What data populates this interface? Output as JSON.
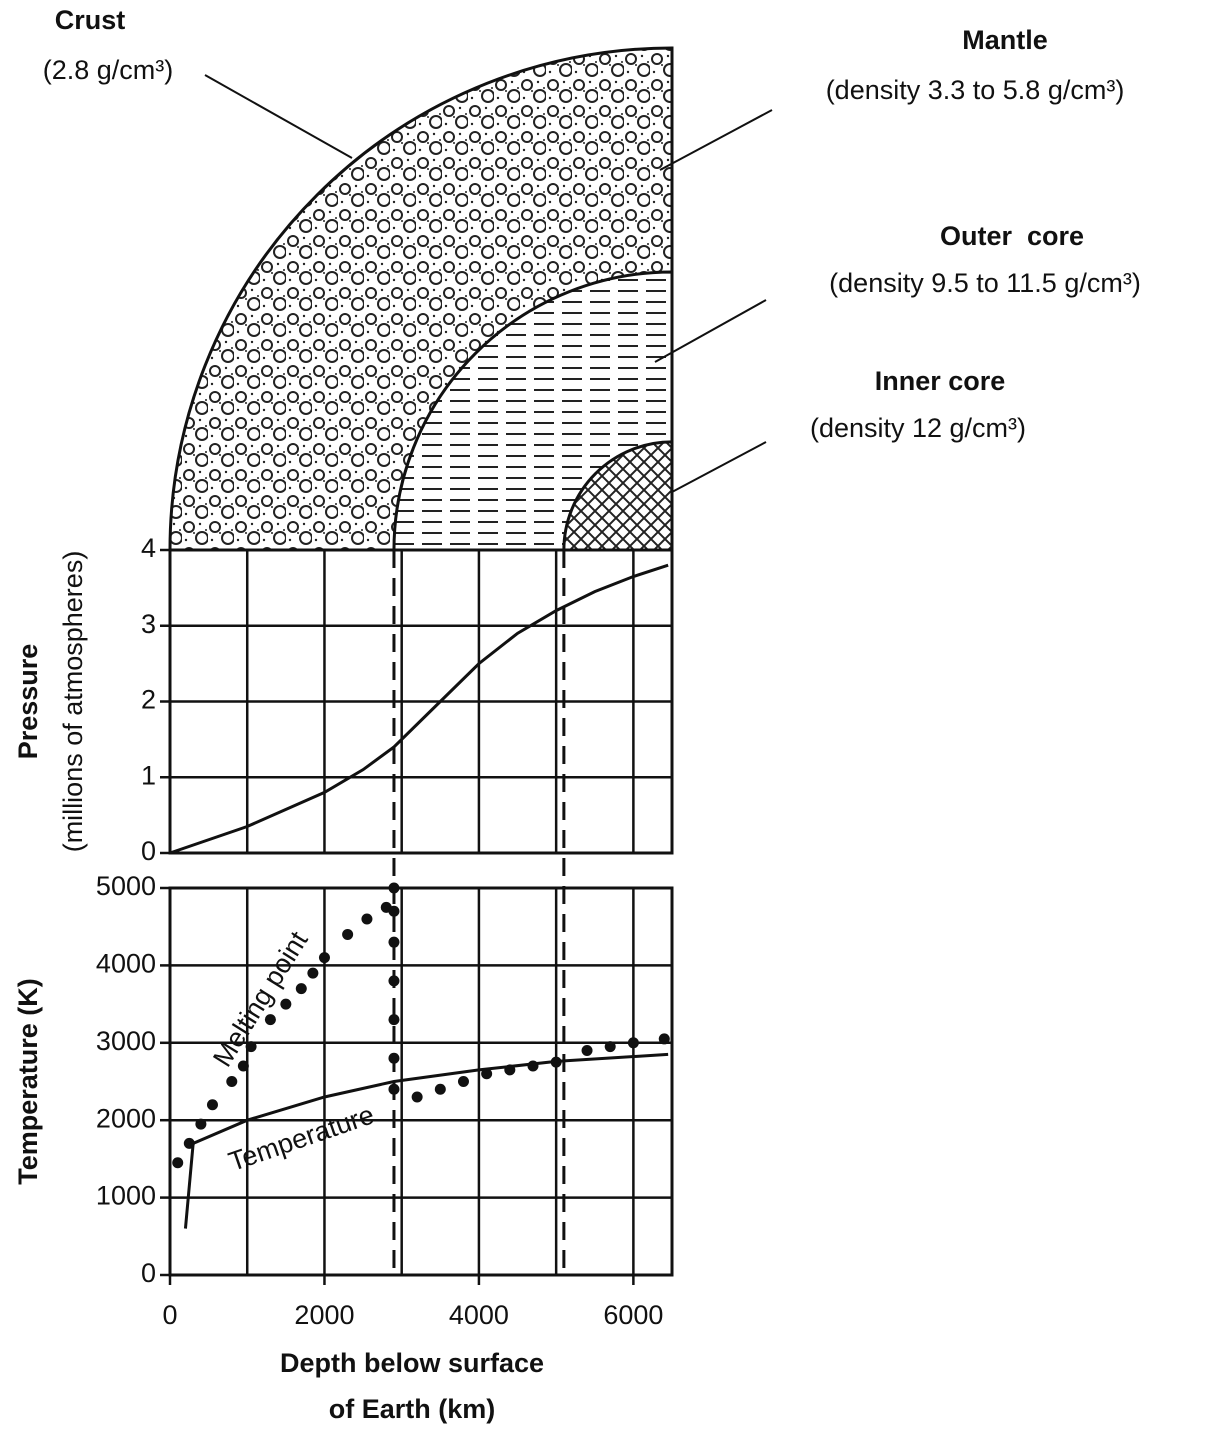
{
  "diagram": {
    "layers": [
      {
        "name": "Crust",
        "density": "(2.8 g/cm³)"
      },
      {
        "name": "Mantle",
        "density": "(density 3.3 to 5.8 g/cm³)"
      },
      {
        "name": "Outer  core",
        "density": "(density 9.5 to 11.5 g/cm³)"
      },
      {
        "name": "Inner core",
        "density": "(density 12 g/cm³)"
      }
    ],
    "boundaries": [
      2900,
      5100
    ]
  },
  "chart_data": [
    {
      "type": "line",
      "ylabel": [
        "Pressure",
        "(millions of atmospheres)"
      ],
      "xlim": [
        0,
        6500
      ],
      "ylim": [
        0,
        4
      ],
      "yticks": [
        0,
        1,
        2,
        3,
        4
      ],
      "xgrid_step": 1000,
      "grid": true,
      "series": [
        {
          "color": "#111",
          "style": "solid",
          "x": [
            0,
            1000,
            2000,
            2500,
            2900,
            3500,
            4000,
            4500,
            5000,
            5500,
            6000,
            6450
          ],
          "values": [
            0,
            0.35,
            0.8,
            1.1,
            1.4,
            2.0,
            2.5,
            2.9,
            3.2,
            3.45,
            3.65,
            3.8
          ]
        }
      ]
    },
    {
      "type": "line",
      "ylabel": "Temperature (K)",
      "xlabel": [
        "Depth below surface",
        "of Earth (km)"
      ],
      "xlim": [
        0,
        6500
      ],
      "ylim": [
        0,
        5000
      ],
      "xticks": [
        0,
        2000,
        4000,
        6000
      ],
      "yticks": [
        0,
        1000,
        2000,
        3000,
        4000,
        5000
      ],
      "xgrid_step": 1000,
      "grid": true,
      "series": [
        {
          "name": "Melting point",
          "color": "#111",
          "style": "dotted",
          "x": [
            100,
            250,
            400,
            550,
            800,
            950,
            1050,
            1300,
            1500,
            1700,
            1850,
            2000,
            2300,
            2550,
            2800,
            2900,
            2900,
            2900,
            2900,
            2900,
            2900,
            2900,
            3200,
            3500,
            3800,
            4100,
            4400,
            4700,
            5000,
            5400,
            5700,
            6000,
            6400
          ],
          "values": [
            1450,
            1700,
            1950,
            2200,
            2500,
            2700,
            2950,
            3300,
            3500,
            3700,
            3900,
            4100,
            4400,
            4600,
            4750,
            5000,
            4700,
            4300,
            3800,
            3300,
            2800,
            2400,
            2300,
            2400,
            2500,
            2600,
            2650,
            2700,
            2750,
            2900,
            2950,
            3000,
            3050
          ]
        },
        {
          "name": "Temperature",
          "color": "#111",
          "style": "solid",
          "x": [
            200,
            300,
            1000,
            2000,
            2900,
            4000,
            5000,
            6450
          ],
          "values": [
            600,
            1700,
            2000,
            2300,
            2500,
            2650,
            2760,
            2850
          ]
        }
      ]
    }
  ]
}
